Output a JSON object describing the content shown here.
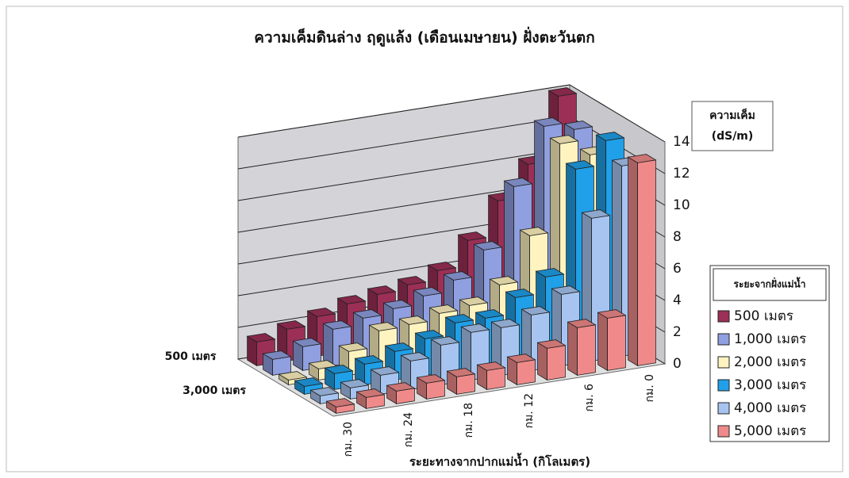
{
  "chart_data": {
    "type": "bar3d",
    "title": "ความเค็มดินล่าง ฤดูแล้ง (เดือนเมษายน) ฝั่งตะวันตก",
    "x_label": "ระยะทางจากปากแม่น้ำ (กิโลเมตร)",
    "y_label": [
      "ความเค็ม",
      "(dS/m)"
    ],
    "legend_title": "ระยะจากฝั่งแม่น้ำ",
    "categories": [
      "กม. 30",
      null,
      "กม. 24",
      null,
      "กม. 18",
      null,
      "กม. 12",
      null,
      "กม. 6",
      null,
      "กม. 0"
    ],
    "series": [
      {
        "name": "500 เมตร",
        "color": "#9c2f56",
        "values": [
          1.5,
          2,
          2.5,
          3,
          3.3,
          3.6,
          4.2,
          5.8,
          8,
          10,
          14
        ]
      },
      {
        "name": "1,000 เมตร",
        "color": "#8f9fe0",
        "values": [
          1,
          1.5,
          2.3,
          2.7,
          3,
          3.5,
          4.2,
          5.8,
          9.5,
          13,
          12.5
        ]
      },
      {
        "name": "2,000 เมตร",
        "color": "#fff4c0",
        "values": [
          0.3,
          0.7,
          1.5,
          2.5,
          2.6,
          3,
          3.2,
          4.2,
          7,
          12.5,
          11.5
        ]
      },
      {
        "name": "3,000 เมตร",
        "color": "#1fa0e8",
        "values": [
          0.5,
          1,
          1.3,
          1.8,
          2.3,
          3,
          3,
          4,
          5,
          11.5,
          13
        ]
      },
      {
        "name": "4,000 เมตร",
        "color": "#a7c4f0",
        "values": [
          0.5,
          0.7,
          1.2,
          1.8,
          2.5,
          3,
          3,
          3.5,
          4.5,
          9,
          12
        ]
      },
      {
        "name": "5,000 เมตร",
        "color": "#f08a8a",
        "values": [
          0.4,
          0.7,
          0.8,
          1,
          1.1,
          1.2,
          1.4,
          2,
          3,
          3.3,
          12.8
        ]
      }
    ],
    "ylim": [
      0,
      14
    ],
    "yticks": [
      0,
      2,
      4,
      6,
      8,
      10,
      12,
      14
    ],
    "grid": true,
    "legend": "right"
  }
}
